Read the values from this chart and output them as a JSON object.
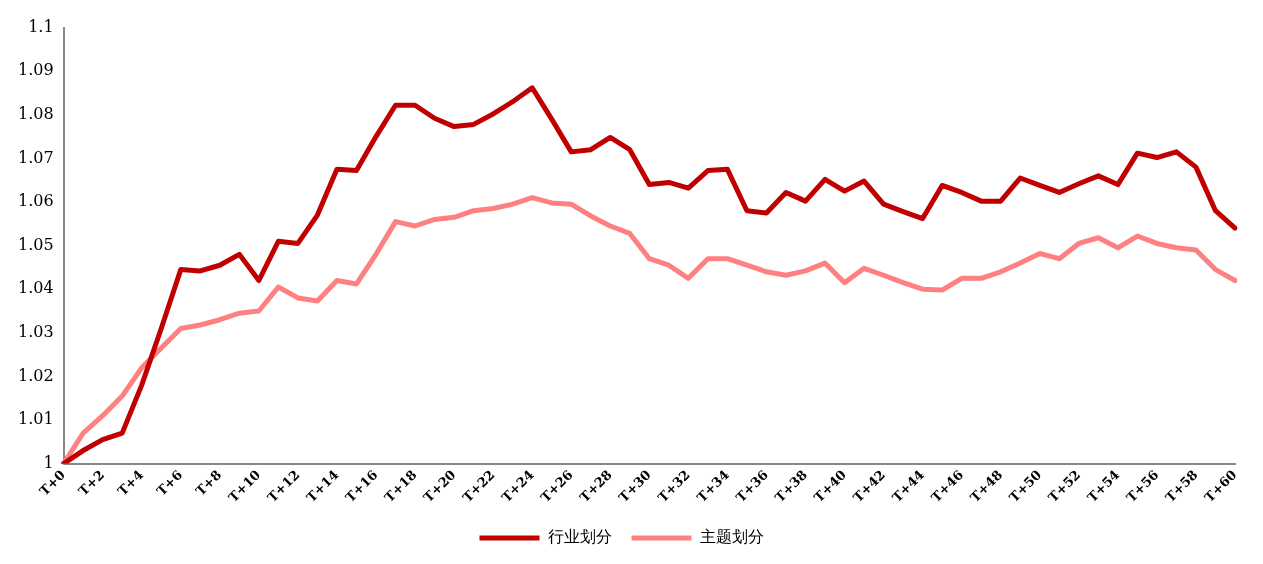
{
  "chart_data": {
    "type": "line",
    "categories": [
      "T+0",
      null,
      "T+2",
      null,
      "T+4",
      null,
      "T+6",
      null,
      "T+8",
      null,
      "T+10",
      null,
      "T+12",
      null,
      "T+14",
      null,
      "T+16",
      null,
      "T+18",
      null,
      "T+20",
      null,
      "T+22",
      null,
      "T+24",
      null,
      "T+26",
      null,
      "T+28",
      null,
      "T+30",
      null,
      "T+32",
      null,
      "T+34",
      null,
      "T+36",
      null,
      "T+38",
      null,
      "T+40",
      null,
      "T+42",
      null,
      "T+44",
      null,
      "T+46",
      null,
      "T+48",
      null,
      "T+50",
      null,
      "T+52",
      null,
      "T+54",
      null,
      "T+56",
      null,
      "T+58",
      null,
      "T+60"
    ],
    "series": [
      {
        "name": "行业划分",
        "color": "#c00000",
        "values": [
          1.0,
          1.003,
          1.0055,
          1.007,
          1.018,
          1.031,
          1.0445,
          1.0442,
          1.0455,
          1.048,
          1.042,
          1.051,
          1.0505,
          1.057,
          1.0675,
          1.0672,
          1.075,
          1.0822,
          1.0822,
          1.0792,
          1.0773,
          1.0778,
          1.0802,
          1.083,
          1.0862,
          1.079,
          1.0715,
          1.072,
          1.0748,
          1.072,
          1.064,
          1.0645,
          1.0632,
          1.0672,
          1.0675,
          1.058,
          1.0575,
          1.0622,
          1.0602,
          1.0652,
          1.0625,
          1.0648,
          1.0595,
          1.0578,
          1.0562,
          1.0638,
          1.0622,
          1.0602,
          1.0602,
          1.0655,
          1.0638,
          1.0622,
          1.0642,
          1.066,
          1.064,
          1.0712,
          1.0702,
          1.0715,
          1.068,
          1.058,
          1.054
        ]
      },
      {
        "name": "主题划分",
        "color": "#ff8080",
        "values": [
          1.0,
          1.007,
          1.011,
          1.0155,
          1.022,
          1.0265,
          1.031,
          1.0318,
          1.033,
          1.0345,
          1.035,
          1.0405,
          1.038,
          1.0373,
          1.042,
          1.0412,
          1.048,
          1.0555,
          1.0545,
          1.056,
          1.0565,
          1.058,
          1.0585,
          1.0595,
          1.061,
          1.0598,
          1.0595,
          1.0568,
          1.0545,
          1.0528,
          1.047,
          1.0455,
          1.0425,
          1.047,
          1.047,
          1.0455,
          1.044,
          1.0432,
          1.0442,
          1.046,
          1.0415,
          1.0448,
          1.0432,
          1.0415,
          1.04,
          1.0398,
          1.0425,
          1.0425,
          1.044,
          1.046,
          1.0482,
          1.047,
          1.0505,
          1.0518,
          1.0495,
          1.0522,
          1.0505,
          1.0495,
          1.049,
          1.0445,
          1.042
        ]
      }
    ],
    "ylim": [
      1,
      1.1
    ],
    "yticks": [
      1,
      1.01,
      1.02,
      1.03,
      1.04,
      1.05,
      1.06,
      1.07,
      1.08,
      1.09,
      1.1
    ],
    "grid": false,
    "legend": "bottom",
    "marker": "none",
    "line_style": "solid"
  }
}
